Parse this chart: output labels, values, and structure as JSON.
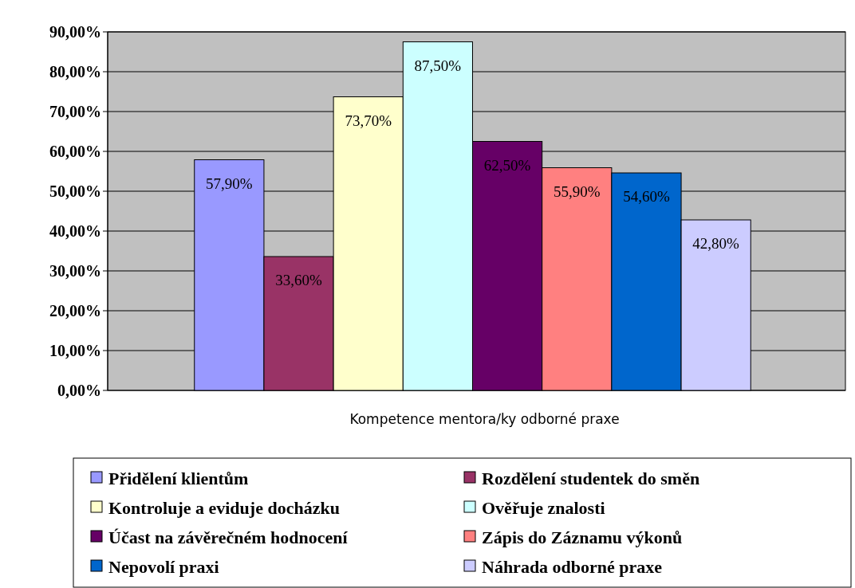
{
  "chart_data": {
    "type": "bar",
    "xlabel": "Kompetence mentora/ky odborné praxe",
    "categories": [
      null
    ],
    "ylim": [
      0,
      90
    ],
    "yticks": [
      {
        "value": 0,
        "label": "0,00%"
      },
      {
        "value": 10,
        "label": "10,00%"
      },
      {
        "value": 20,
        "label": "20,00%"
      },
      {
        "value": 30,
        "label": "30,00%"
      },
      {
        "value": 40,
        "label": "40,00%"
      },
      {
        "value": 50,
        "label": "50,00%"
      },
      {
        "value": 60,
        "label": "60,00%"
      },
      {
        "value": 70,
        "label": "70,00%"
      },
      {
        "value": 80,
        "label": "80,00%"
      },
      {
        "value": 90,
        "label": "90,00%"
      }
    ],
    "grid": "y",
    "legend": "bottom",
    "series": [
      {
        "name": "Přidělení klientům",
        "color": "#9999ff",
        "values": [
          57.9
        ],
        "value_labels": [
          "57,90%"
        ]
      },
      {
        "name": "Rozdělení studentek do směn",
        "color": "#993366",
        "values": [
          33.6
        ],
        "value_labels": [
          "33,60%"
        ]
      },
      {
        "name": "Kontroluje a eviduje docházku",
        "color": "#ffffcc",
        "values": [
          73.7
        ],
        "value_labels": [
          "73,70%"
        ]
      },
      {
        "name": "Ověřuje znalosti",
        "color": "#ccffff",
        "values": [
          87.5
        ],
        "value_labels": [
          "87,50%"
        ]
      },
      {
        "name": "Účast na závěrečném hodnocení",
        "color": "#660066",
        "values": [
          62.5
        ],
        "value_labels": [
          "62,50%"
        ]
      },
      {
        "name": "Zápis do Záznamu výkonů",
        "color": "#ff8080",
        "values": [
          55.9
        ],
        "value_labels": [
          "55,90%"
        ]
      },
      {
        "name": "Nepovolí praxi",
        "color": "#0066cc",
        "values": [
          54.6
        ],
        "value_labels": [
          "54,60%"
        ]
      },
      {
        "name": "Náhrada odborné praxe",
        "color": "#ccccff",
        "values": [
          42.8
        ],
        "value_labels": [
          "42,80%"
        ]
      }
    ]
  }
}
